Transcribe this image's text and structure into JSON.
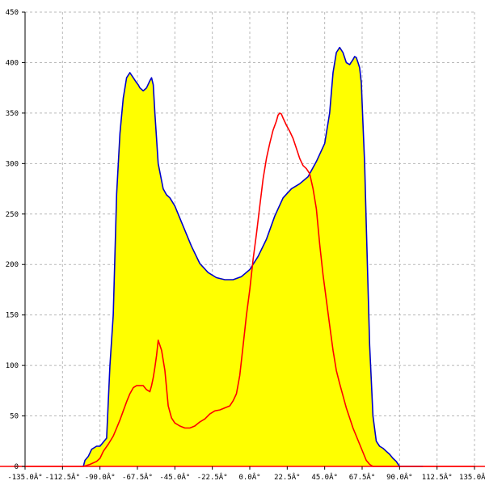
{
  "chart_data": {
    "type": "line",
    "title": "",
    "xlabel": "",
    "ylabel": "",
    "xlim": [
      -135,
      135
    ],
    "ylim": [
      0,
      450
    ],
    "grid": true,
    "legend": "none",
    "x_ticks": [
      -135,
      -112.5,
      -90,
      -67.5,
      -45,
      -22.5,
      0,
      22.5,
      45,
      67.5,
      90,
      112.5,
      135
    ],
    "x_tick_labels": [
      "-135.0Â°",
      "-112.5Â°",
      "-90.0Â°",
      "-67.5Â°",
      "-45.0Â°",
      "-22.5Â°",
      "0.0Â°",
      "22.5Â°",
      "45.0Â°",
      "67.5Â°",
      "90.0Â°",
      "112.5Â°",
      "135.0Â°"
    ],
    "y_ticks": [
      0,
      50,
      100,
      150,
      200,
      250,
      300,
      350,
      400,
      450
    ],
    "y_tick_labels": [
      "0",
      "50",
      "100",
      "150",
      "200",
      "250",
      "300",
      "350",
      "400",
      "450"
    ],
    "series": [
      {
        "color": "#0000cc",
        "fill": "#ffff00",
        "x": [
          -100,
          -99,
          -97,
          -95,
          -92,
          -90,
          -88,
          -86,
          -84,
          -82,
          -80,
          -78,
          -76,
          -74,
          -72,
          -70,
          -68,
          -67,
          -66,
          -64,
          -62,
          -60,
          -59,
          -58,
          -57,
          -55,
          -52,
          -50,
          -48,
          -45,
          -40,
          -35,
          -30,
          -25,
          -20,
          -15,
          -10,
          -5,
          0,
          5,
          10,
          15,
          20,
          25,
          30,
          35,
          40,
          45,
          48,
          50,
          52,
          54,
          56,
          58,
          60,
          62,
          63,
          64,
          65,
          66,
          67,
          68,
          69,
          70,
          72,
          74,
          76,
          78,
          80,
          82,
          84,
          86,
          88,
          90,
          93,
          96,
          99,
          101,
          103,
          104
        ],
        "y": [
          0,
          6,
          10,
          17,
          20,
          20,
          24,
          28,
          100,
          150,
          270,
          330,
          365,
          385,
          390,
          385,
          380,
          378,
          375,
          372,
          375,
          382,
          385,
          378,
          350,
          300,
          275,
          269,
          266,
          258,
          238,
          218,
          201,
          192,
          187,
          185,
          185,
          188,
          195,
          208,
          225,
          248,
          266,
          275,
          280,
          287,
          302,
          320,
          350,
          390,
          410,
          415,
          410,
          400,
          398,
          403,
          406,
          405,
          400,
          395,
          380,
          340,
          300,
          240,
          120,
          50,
          25,
          20,
          18,
          15,
          12,
          8,
          5,
          0,
          0,
          0,
          0,
          0,
          0,
          0
        ]
      },
      {
        "color": "#ff0000",
        "x": [
          -135,
          -120,
          -105,
          -100,
          -96,
          -92,
          -90,
          -88,
          -85,
          -82,
          -80,
          -78,
          -76,
          -74,
          -72,
          -70,
          -68,
          -66,
          -64,
          -62,
          -60,
          -59,
          -58,
          -57,
          -56,
          -55,
          -53,
          -51,
          -49,
          -47,
          -45,
          -42,
          -39,
          -36,
          -33,
          -30,
          -27,
          -24,
          -21,
          -18,
          -15,
          -12,
          -10,
          -8,
          -6,
          -4,
          -2,
          0,
          2,
          4,
          6,
          8,
          10,
          12,
          14,
          16,
          17,
          18,
          19,
          20,
          22,
          24,
          26,
          28,
          30,
          32,
          34,
          36,
          38,
          40,
          42,
          44,
          46,
          48,
          50,
          52,
          54,
          56,
          58,
          60,
          62,
          64,
          66,
          68,
          70,
          72,
          74,
          76,
          78,
          80,
          82,
          84,
          86,
          88,
          90,
          92,
          94,
          96,
          98,
          100,
          102,
          104,
          110,
          120,
          135
        ],
        "y": [
          0,
          0,
          0,
          0,
          2,
          5,
          8,
          15,
          22,
          30,
          38,
          46,
          55,
          64,
          72,
          78,
          80,
          80,
          80,
          76,
          74,
          80,
          88,
          98,
          110,
          125,
          115,
          95,
          60,
          48,
          43,
          40,
          38,
          38,
          40,
          44,
          47,
          52,
          55,
          56,
          58,
          60,
          65,
          72,
          90,
          120,
          150,
          175,
          205,
          230,
          258,
          285,
          305,
          320,
          333,
          342,
          348,
          350,
          349,
          345,
          338,
          332,
          325,
          315,
          305,
          298,
          295,
          290,
          275,
          255,
          220,
          190,
          165,
          140,
          115,
          95,
          82,
          70,
          58,
          48,
          38,
          30,
          22,
          14,
          6,
          2,
          0,
          0,
          0,
          0,
          0,
          0,
          0,
          0,
          0,
          0,
          0,
          0,
          0,
          0,
          0,
          0,
          0,
          0,
          0
        ]
      }
    ]
  }
}
